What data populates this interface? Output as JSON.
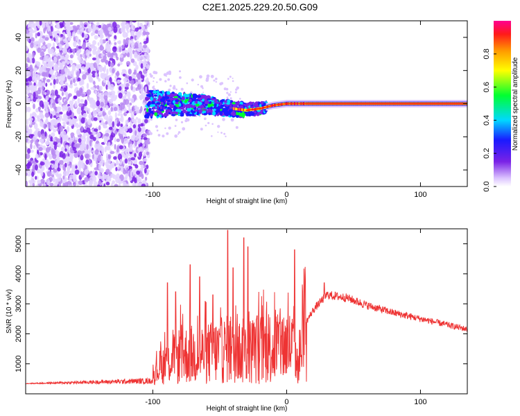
{
  "title": "C2E1.2025.229.20.50.G09",
  "chart_data": [
    {
      "type": "heatmap",
      "xlabel": "Height of straight line (km)",
      "ylabel": "Frequency (Hz)",
      "xlim": [
        -195,
        135
      ],
      "ylim": [
        -50,
        50
      ],
      "xticks": [
        -100,
        0,
        100
      ],
      "yticks": [
        -40,
        -20,
        0,
        20,
        40
      ],
      "colorbar": {
        "label": "Normalized spectral amplitude",
        "range": [
          0,
          1
        ],
        "ticks": [
          "0.0",
          "0.2",
          "0.4",
          "0.6",
          "0.8"
        ]
      },
      "ridge": [
        {
          "x": -100,
          "y": 0
        },
        {
          "x": -60,
          "y": -1
        },
        {
          "x": -40,
          "y": -3
        },
        {
          "x": -30,
          "y": -4
        },
        {
          "x": -20,
          "y": -3
        },
        {
          "x": -10,
          "y": -1
        },
        {
          "x": 0,
          "y": 0
        },
        {
          "x": 10,
          "y": 0
        },
        {
          "x": 20,
          "y": 0
        },
        {
          "x": 135,
          "y": 0
        }
      ],
      "noise_region_xmax": -103
    },
    {
      "type": "line",
      "xlabel": "Height of straight line (km)",
      "ylabel": "SNR (10 * v/v)",
      "xlim": [
        -195,
        135
      ],
      "ylim": [
        0,
        5500
      ],
      "xticks": [
        -100,
        0,
        100
      ],
      "yticks": [
        1000,
        2000,
        3000,
        4000,
        5000
      ],
      "color": "#ee3333",
      "envelope": [
        {
          "x": -195,
          "y": 350
        },
        {
          "x": -100,
          "y": 500
        },
        {
          "x": -95,
          "y": 900
        },
        {
          "x": -80,
          "y": 1500
        },
        {
          "x": -60,
          "y": 1600
        },
        {
          "x": -45,
          "y": 1800
        },
        {
          "x": -30,
          "y": 1700
        },
        {
          "x": -15,
          "y": 1900
        },
        {
          "x": 0,
          "y": 2000
        },
        {
          "x": 5,
          "y": 1900
        },
        {
          "x": 8,
          "y": 1000
        },
        {
          "x": 12,
          "y": 2200
        },
        {
          "x": 20,
          "y": 2800
        },
        {
          "x": 30,
          "y": 3300
        },
        {
          "x": 45,
          "y": 3200
        },
        {
          "x": 60,
          "y": 2950
        },
        {
          "x": 80,
          "y": 2700
        },
        {
          "x": 100,
          "y": 2500
        },
        {
          "x": 120,
          "y": 2300
        },
        {
          "x": 135,
          "y": 2150
        }
      ],
      "spikes": [
        {
          "x": -89,
          "y": 3700
        },
        {
          "x": -83,
          "y": 3400
        },
        {
          "x": -72,
          "y": 4300
        },
        {
          "x": -65,
          "y": 3900
        },
        {
          "x": -55,
          "y": 3300
        },
        {
          "x": -44,
          "y": 5450
        },
        {
          "x": -40,
          "y": 4200
        },
        {
          "x": -32,
          "y": 5200
        },
        {
          "x": -29,
          "y": 4900
        },
        {
          "x": -22,
          "y": 2600
        },
        {
          "x": 6,
          "y": 4800
        },
        {
          "x": 28,
          "y": 3700
        }
      ]
    }
  ]
}
